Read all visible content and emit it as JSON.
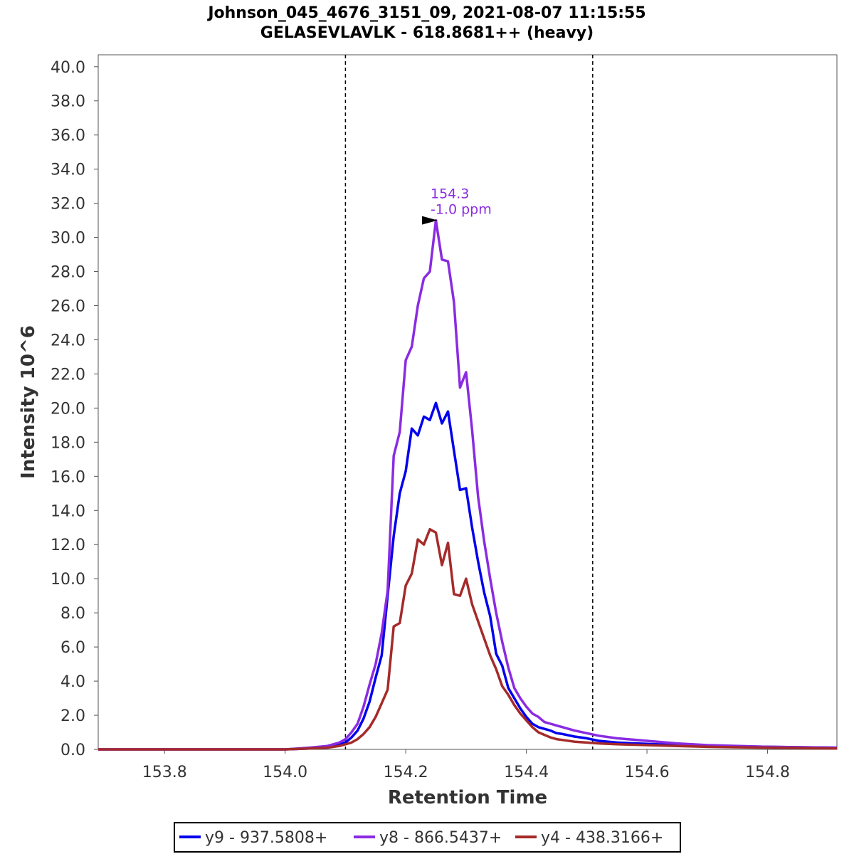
{
  "chart_data": {
    "type": "line",
    "title": "Johnson_045_4676_3151_09, 2021-08-07 11:15:55",
    "subtitle": "GELASEVLAVLK - 618.8681++ (heavy)",
    "xlabel": "Retention Time",
    "ylabel": "Intensity 10^6",
    "xlim": [
      153.69,
      154.915
    ],
    "ylim": [
      0,
      40.7
    ],
    "x_ticks": [
      "153.8",
      "154.0",
      "154.2",
      "154.4",
      "154.6",
      "154.8"
    ],
    "y_ticks": [
      "0.0",
      "2.0",
      "4.0",
      "6.0",
      "8.0",
      "10.0",
      "12.0",
      "14.0",
      "16.0",
      "18.0",
      "20.0",
      "22.0",
      "24.0",
      "26.0",
      "28.0",
      "30.0",
      "32.0",
      "34.0",
      "36.0",
      "38.0",
      "40.0"
    ],
    "grid": false,
    "legend_position": "bottom",
    "integration_bounds": [
      154.1,
      154.51
    ],
    "annotation": {
      "x": 154.26,
      "y": 31.0,
      "line1": "154.3",
      "line2": "-1.0 ppm",
      "color": "#8a2be2"
    },
    "x": [
      153.69,
      153.8,
      153.9,
      154.0,
      154.04,
      154.07,
      154.09,
      154.1,
      154.11,
      154.12,
      154.13,
      154.14,
      154.15,
      154.16,
      154.17,
      154.18,
      154.19,
      154.2,
      154.21,
      154.22,
      154.23,
      154.24,
      154.25,
      154.26,
      154.27,
      154.28,
      154.29,
      154.3,
      154.31,
      154.32,
      154.33,
      154.34,
      154.35,
      154.36,
      154.37,
      154.38,
      154.39,
      154.4,
      154.41,
      154.42,
      154.43,
      154.44,
      154.45,
      154.46,
      154.48,
      154.5,
      154.52,
      154.55,
      154.6,
      154.65,
      154.7,
      154.8,
      154.915
    ],
    "series": [
      {
        "name": "y9 - 937.5808+",
        "color": "#0000ee",
        "values": [
          0,
          0,
          0,
          0,
          0.05,
          0.15,
          0.3,
          0.4,
          0.7,
          1.1,
          1.8,
          2.8,
          4.2,
          5.5,
          9.0,
          12.5,
          15.0,
          16.3,
          18.8,
          18.4,
          19.5,
          19.3,
          20.3,
          19.1,
          19.8,
          17.5,
          15.2,
          15.3,
          13.0,
          11.0,
          9.2,
          7.8,
          5.6,
          4.9,
          3.6,
          3.0,
          2.4,
          1.9,
          1.5,
          1.3,
          1.2,
          1.1,
          0.95,
          0.9,
          0.75,
          0.65,
          0.5,
          0.4,
          0.32,
          0.25,
          0.2,
          0.15,
          0.1
        ]
      },
      {
        "name": "y8 - 866.5437+",
        "color": "#8a2be2",
        "values": [
          0,
          0,
          0,
          0,
          0.1,
          0.2,
          0.4,
          0.6,
          1.0,
          1.5,
          2.5,
          3.8,
          5.0,
          6.8,
          9.3,
          17.2,
          18.6,
          22.8,
          23.6,
          26.0,
          27.6,
          28.0,
          31.0,
          28.7,
          28.6,
          26.2,
          21.2,
          22.1,
          18.7,
          14.8,
          12.2,
          10.0,
          8.0,
          6.3,
          4.8,
          3.6,
          3.0,
          2.5,
          2.1,
          1.9,
          1.6,
          1.5,
          1.4,
          1.3,
          1.1,
          0.95,
          0.8,
          0.65,
          0.5,
          0.35,
          0.25,
          0.15,
          0.1
        ]
      },
      {
        "name": "y4 - 438.3166+",
        "color": "#a52a2a",
        "values": [
          0,
          0,
          0,
          0,
          0.05,
          0.1,
          0.2,
          0.3,
          0.4,
          0.6,
          0.9,
          1.3,
          1.9,
          2.7,
          3.5,
          7.2,
          7.4,
          9.6,
          10.3,
          12.3,
          12.0,
          12.9,
          12.7,
          10.8,
          12.1,
          9.1,
          9.0,
          10.0,
          8.5,
          7.5,
          6.5,
          5.5,
          4.7,
          3.7,
          3.2,
          2.6,
          2.1,
          1.7,
          1.3,
          1.0,
          0.85,
          0.7,
          0.6,
          0.55,
          0.45,
          0.4,
          0.35,
          0.3,
          0.25,
          0.2,
          0.15,
          0.1,
          0.05
        ]
      }
    ]
  }
}
